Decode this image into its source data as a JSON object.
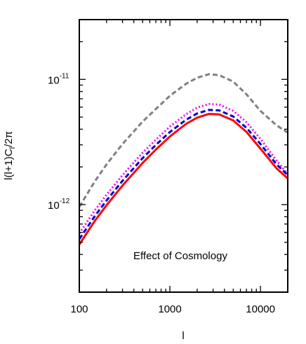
{
  "chart_data": {
    "type": "line",
    "xscale": "log",
    "yscale": "log",
    "xlim": [
      100,
      20000
    ],
    "ylim": [
      2e-13,
      3e-11
    ],
    "grid": false,
    "xlabel": "l",
    "ylabel_base": "l(l+1)C",
    "ylabel_sub": "l",
    "ylabel_tail": "/2π",
    "x_tick_labels": [
      {
        "value": 100,
        "label": "100"
      },
      {
        "value": 1000,
        "label": "1000"
      },
      {
        "value": 10000,
        "label": "10000"
      }
    ],
    "y_tick_labels": [
      {
        "value": 1e-12,
        "base": "10",
        "exp": "-12"
      },
      {
        "value": 1e-11,
        "base": "10",
        "exp": "-11"
      }
    ],
    "annotation": "Effect of Cosmology",
    "series": [
      {
        "color": "#808080",
        "dash": "dashed",
        "points": [
          [
            100,
            9.6e-13
          ],
          [
            150,
            1.55e-12
          ],
          [
            200,
            2.1e-12
          ],
          [
            300,
            3.05e-12
          ],
          [
            500,
            4.6e-12
          ],
          [
            700,
            5.8e-12
          ],
          [
            1000,
            7.4e-12
          ],
          [
            1500,
            9.2e-12
          ],
          [
            2000,
            1.03e-11
          ],
          [
            2700,
            1.1e-11
          ],
          [
            3500,
            1.08e-11
          ],
          [
            5000,
            9.6e-12
          ],
          [
            7000,
            7.6e-12
          ],
          [
            10000,
            5.6e-12
          ],
          [
            15000,
            4.3e-12
          ],
          [
            20000,
            3.75e-12
          ]
        ]
      },
      {
        "color": "#ff00ff",
        "dash": "dotted",
        "points": [
          [
            100,
            5.9e-13
          ],
          [
            150,
            9.1e-13
          ],
          [
            200,
            1.2e-12
          ],
          [
            300,
            1.72e-12
          ],
          [
            500,
            2.6e-12
          ],
          [
            700,
            3.3e-12
          ],
          [
            1000,
            4.2e-12
          ],
          [
            1500,
            5.25e-12
          ],
          [
            2000,
            5.95e-12
          ],
          [
            2700,
            6.35e-12
          ],
          [
            3500,
            6.3e-12
          ],
          [
            5000,
            5.6e-12
          ],
          [
            7000,
            4.55e-12
          ],
          [
            10000,
            3.35e-12
          ],
          [
            15000,
            2.25e-12
          ],
          [
            20000,
            1.75e-12
          ]
        ]
      },
      {
        "color": "#0000cc",
        "dash": "dashed",
        "points": [
          [
            100,
            5.3e-13
          ],
          [
            150,
            8.2e-13
          ],
          [
            200,
            1.08e-12
          ],
          [
            300,
            1.55e-12
          ],
          [
            500,
            2.35e-12
          ],
          [
            700,
            3e-12
          ],
          [
            1000,
            3.8e-12
          ],
          [
            1500,
            4.75e-12
          ],
          [
            2000,
            5.35e-12
          ],
          [
            2700,
            5.7e-12
          ],
          [
            3500,
            5.65e-12
          ],
          [
            5000,
            5.05e-12
          ],
          [
            7000,
            4.1e-12
          ],
          [
            10000,
            3.05e-12
          ],
          [
            15000,
            2.1e-12
          ],
          [
            20000,
            1.72e-12
          ]
        ]
      },
      {
        "color": "#ff0000",
        "dash": "solid",
        "points": [
          [
            100,
            4.8e-13
          ],
          [
            150,
            7.5e-13
          ],
          [
            200,
            9.9e-13
          ],
          [
            300,
            1.42e-12
          ],
          [
            500,
            2.15e-12
          ],
          [
            700,
            2.75e-12
          ],
          [
            1000,
            3.5e-12
          ],
          [
            1500,
            4.4e-12
          ],
          [
            2000,
            4.95e-12
          ],
          [
            2700,
            5.3e-12
          ],
          [
            3500,
            5.25e-12
          ],
          [
            5000,
            4.7e-12
          ],
          [
            7000,
            3.8e-12
          ],
          [
            10000,
            2.8e-12
          ],
          [
            15000,
            1.95e-12
          ],
          [
            20000,
            1.62e-12
          ]
        ]
      }
    ]
  }
}
